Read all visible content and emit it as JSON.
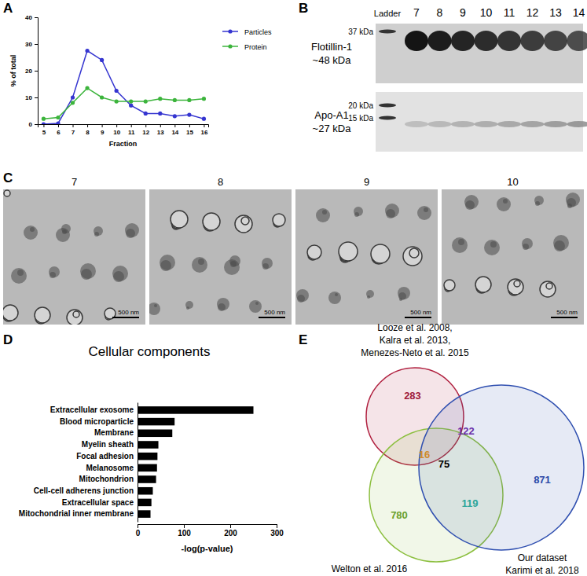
{
  "chart_data": [
    {
      "panel": "A",
      "type": "line",
      "x_label": "Fraction",
      "y_label": "% of total",
      "x": [
        5,
        6,
        7,
        8,
        9,
        10,
        11,
        12,
        13,
        14,
        15,
        16
      ],
      "xlim": [
        4.6,
        16.3
      ],
      "xticks": [
        5,
        6,
        7,
        8,
        9,
        10,
        11,
        12,
        13,
        14,
        15,
        16
      ],
      "ylim": [
        0,
        40
      ],
      "yticks": [
        0,
        10,
        20,
        30,
        40
      ],
      "legend": "right",
      "marker": "circle",
      "series": [
        {
          "name": "Particles",
          "color": "#3535d0",
          "values": [
            0,
            0.3,
            10,
            27.5,
            24,
            12.5,
            7,
            4,
            4,
            3,
            3.5,
            2
          ]
        },
        {
          "name": "Protein",
          "color": "#3cb43c",
          "values": [
            2,
            2.5,
            8,
            13.5,
            10,
            8.5,
            8.5,
            8.5,
            9.5,
            9,
            9,
            9.5
          ]
        }
      ]
    },
    {
      "panel": "B",
      "type": "blot",
      "lanes": [
        "Ladder",
        "7",
        "8",
        "9",
        "10",
        "11",
        "12",
        "13",
        "14"
      ],
      "rows": [
        {
          "name": "Flotillin-1",
          "size": "~48 kDa",
          "ladder": [
            "37 kDa"
          ]
        },
        {
          "name": "Apo-A1",
          "size": "~27 kDa",
          "ladder": [
            "20 kDa",
            "15 kDa"
          ]
        }
      ]
    },
    {
      "panel": "C",
      "type": "micrograph",
      "images": [
        {
          "label": "7",
          "scale_bar": "500 nm"
        },
        {
          "label": "8",
          "scale_bar": "500 nm"
        },
        {
          "label": "9",
          "scale_bar": "500 nm"
        },
        {
          "label": "10",
          "scale_bar": "500 nm"
        }
      ]
    },
    {
      "panel": "D",
      "type": "bar",
      "orientation": "horizontal",
      "title": "Cellular components",
      "x_label": "-log(p-value)",
      "color": "#000000",
      "categories": [
        "Extracellular exosome",
        "Blood microparticle",
        "Membrane",
        "Myelin sheath",
        "Focal adhesion",
        "Melanosome",
        "Mitochondrion",
        "Cell-cell adherens junction",
        "Extracellular space",
        "Mitochondrial inner membrane"
      ],
      "values": [
        250,
        80,
        75,
        45,
        43,
        42,
        40,
        33,
        30,
        28
      ],
      "xlim": [
        0,
        300
      ],
      "xticks": [
        0,
        100,
        200,
        300
      ]
    },
    {
      "panel": "E",
      "type": "venn",
      "sets": [
        {
          "name": [
            "Looze et al. 2008,",
            "Kalra et al. 2013,",
            "Menezes-Neto et al. 2015"
          ],
          "color": "#b0203f"
        },
        {
          "name": [
            "Welton et al. 2016"
          ],
          "color": "#8cbf3f"
        },
        {
          "name": [
            "Our dataset",
            "Karimi et al. 2018"
          ],
          "color": "#2f4fb0"
        }
      ],
      "regions": [
        {
          "sets": [
            0
          ],
          "value": 283,
          "color": "#a01b3b"
        },
        {
          "sets": [
            0,
            1
          ],
          "value": 16,
          "color": "#d08a2a"
        },
        {
          "sets": [
            0,
            2
          ],
          "value": 122,
          "color": "#6a2fa8"
        },
        {
          "sets": [
            0,
            1,
            2
          ],
          "value": 75,
          "color": "#000000"
        },
        {
          "sets": [
            1
          ],
          "value": 780,
          "color": "#6aa02a"
        },
        {
          "sets": [
            1,
            2
          ],
          "value": 119,
          "color": "#2aa59a"
        },
        {
          "sets": [
            2
          ],
          "value": 871,
          "color": "#2d4aa8"
        }
      ]
    }
  ]
}
